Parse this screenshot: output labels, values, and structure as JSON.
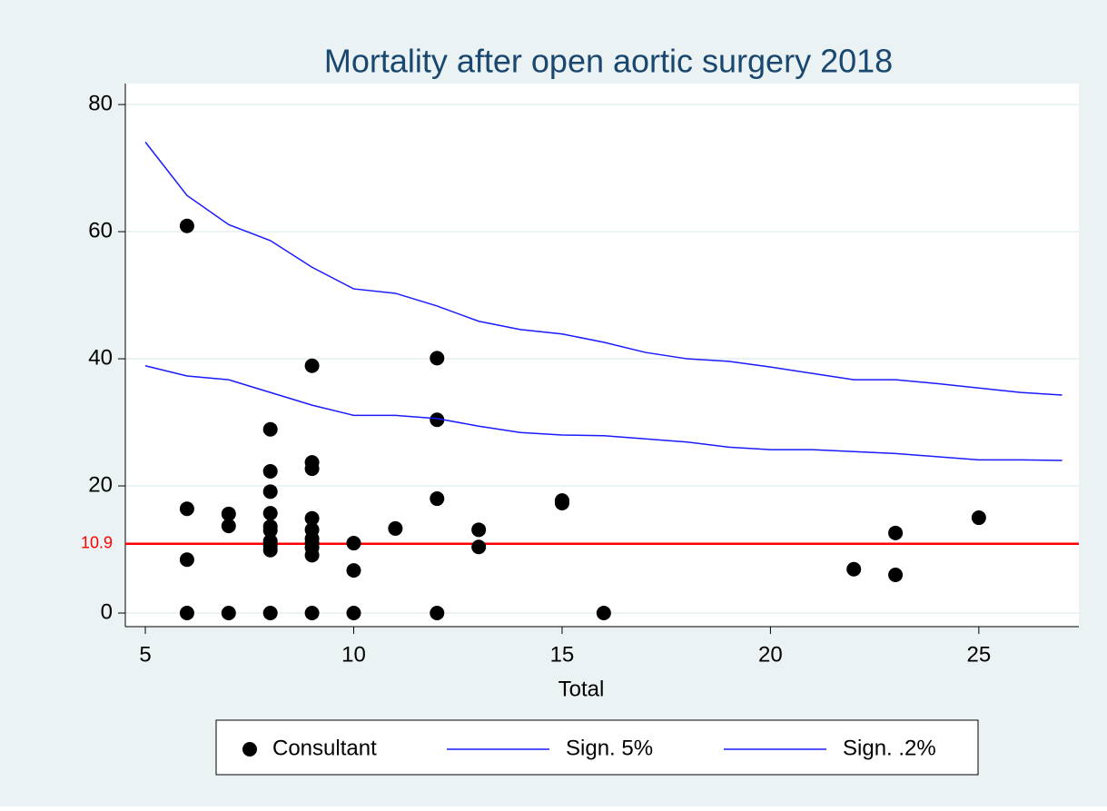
{
  "chart_data": {
    "type": "scatter",
    "title": "Mortality after open aortic surgery 2018",
    "x_label": "Total",
    "xlim": [
      4.52,
      27.4
    ],
    "ylim": [
      -2.14,
      83.3
    ],
    "xticks": [
      5,
      10,
      15,
      20,
      25
    ],
    "yticks": [
      0,
      20,
      40,
      60,
      80
    ],
    "grid": true,
    "legend": "bottom",
    "reference_line": {
      "value": 10.9,
      "color": "#ff0000"
    },
    "series": [
      {
        "name": "Consultant",
        "type": "scatter",
        "color": "#000000",
        "x": [
          6,
          6,
          6,
          6,
          7,
          7,
          7,
          8,
          8,
          8,
          8,
          8,
          8,
          8,
          8,
          8,
          8,
          9,
          9,
          9,
          9,
          9,
          9,
          9,
          9,
          9,
          9,
          10,
          10,
          10,
          11,
          12,
          12,
          12,
          12,
          13,
          13,
          15,
          15,
          16,
          22,
          23,
          23,
          25
        ],
        "values": [
          60.9,
          16.4,
          8.4,
          0,
          15.6,
          13.7,
          0,
          28.9,
          22.3,
          19.1,
          15.7,
          13.6,
          13.0,
          11.3,
          10.6,
          9.9,
          0,
          38.9,
          23.7,
          22.7,
          14.9,
          13.1,
          11.7,
          11.0,
          10.3,
          9.1,
          0,
          11.0,
          6.7,
          0,
          13.3,
          40.1,
          30.4,
          18,
          0,
          13.1,
          10.4,
          17.7,
          17.3,
          0,
          6.9,
          12.6,
          6.0,
          15.0
        ]
      },
      {
        "name": "Sign. 5%",
        "type": "line",
        "color": "#1a1aff",
        "x": [
          5,
          6,
          7,
          8,
          9,
          10,
          11,
          12,
          13,
          14,
          15,
          16,
          17,
          18,
          19,
          20,
          21,
          22,
          23,
          24,
          25,
          26,
          27
        ],
        "values": [
          38.9,
          37.3,
          36.7,
          34.7,
          32.7,
          31.1,
          31.1,
          30.6,
          29.4,
          28.4,
          28.0,
          27.9,
          27.4,
          26.9,
          26.1,
          25.7,
          25.7,
          25.4,
          25.1,
          24.6,
          24.1,
          24.1,
          24.0
        ]
      },
      {
        "name": "Sign. .2%",
        "type": "line",
        "color": "#1a1aff",
        "x": [
          5,
          6,
          7,
          8,
          9,
          10,
          11,
          12,
          13,
          14,
          15,
          16,
          17,
          18,
          19,
          20,
          21,
          22,
          23,
          24,
          25,
          26,
          27
        ],
        "values": [
          74.1,
          65.7,
          61.1,
          58.6,
          54.4,
          51.0,
          50.3,
          48.3,
          45.9,
          44.6,
          43.9,
          42.6,
          41.0,
          40.0,
          39.6,
          38.7,
          37.7,
          36.7,
          36.7,
          36.1,
          35.4,
          34.7,
          34.3
        ]
      }
    ]
  }
}
